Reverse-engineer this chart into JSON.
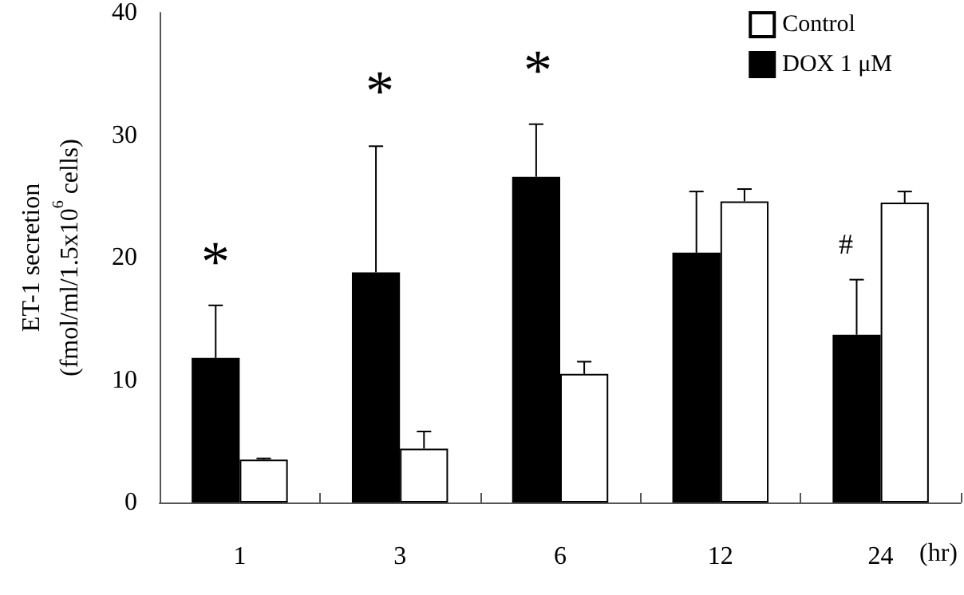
{
  "chart_data": {
    "type": "bar",
    "categories": [
      "1",
      "3",
      "6",
      "12",
      "24"
    ],
    "xlabel": "(hr)",
    "ylabel": "ET-1 secretion\n(fmol/ml/1.5x10$^{6}$ cells)",
    "ylim": [
      0,
      40
    ],
    "yticks": [
      0,
      10,
      20,
      30,
      40
    ],
    "series": [
      {
        "name": "DOX 1 μM",
        "color": "#000000",
        "values": [
          11.8,
          18.8,
          26.6,
          20.4,
          13.7
        ],
        "errors": [
          [
            11.8,
            16.1
          ],
          [
            18.8,
            29.1
          ],
          [
            26.6,
            30.9
          ],
          [
            20.4,
            25.4
          ],
          [
            13.7,
            18.2
          ]
        ]
      },
      {
        "name": "Control",
        "color": "#ffffff",
        "values": [
          3.5,
          4.4,
          10.5,
          24.6,
          24.5
        ],
        "errors": [
          [
            3.5,
            3.6
          ],
          [
            4.4,
            5.8
          ],
          [
            10.5,
            11.5
          ],
          [
            24.6,
            25.6
          ],
          [
            24.5,
            25.4
          ]
        ]
      }
    ],
    "annotations": [
      "*",
      "*",
      "*",
      "#"
    ],
    "legend": "top right",
    "grid": false
  }
}
